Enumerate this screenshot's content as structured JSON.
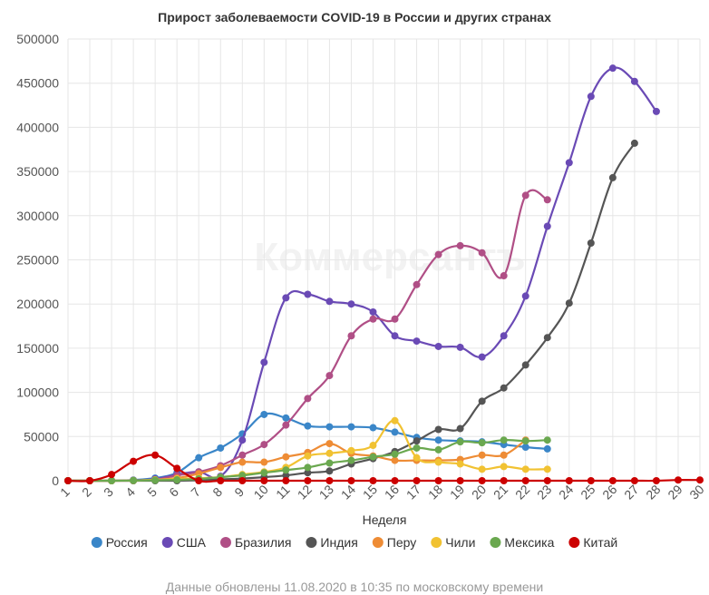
{
  "chart_data": {
    "type": "line",
    "title": "Прирост заболеваемости COVID-19 в России и других странах",
    "xlabel": "Неделя",
    "ylabel": "",
    "ylim": [
      0,
      500000
    ],
    "y_ticks": [
      0,
      50000,
      100000,
      150000,
      200000,
      250000,
      300000,
      350000,
      400000,
      450000,
      500000
    ],
    "categories": [
      "1",
      "2",
      "3",
      "4",
      "5",
      "6",
      "7",
      "8",
      "9",
      "10",
      "11",
      "12",
      "13",
      "14",
      "15",
      "16",
      "17",
      "18",
      "19",
      "20",
      "21",
      "22",
      "23",
      "24",
      "25",
      "26",
      "27",
      "28",
      "29",
      "30"
    ],
    "grid": true,
    "legend_position": "bottom",
    "series": [
      {
        "name": "Россия",
        "color": "#3a86c8",
        "values": [
          0,
          0,
          0,
          800,
          3000,
          9000,
          26000,
          37000,
          53000,
          75000,
          71000,
          62000,
          61000,
          61000,
          60000,
          55000,
          49000,
          46000,
          45000,
          44000,
          41000,
          38000,
          36000,
          null,
          null,
          null,
          null,
          null,
          null,
          null
        ]
      },
      {
        "name": "США",
        "color": "#6a4ab5",
        "values": [
          0,
          0,
          0,
          500,
          2000,
          7000,
          10000,
          5000,
          46000,
          134000,
          207000,
          211000,
          203000,
          200000,
          191000,
          164000,
          158000,
          152000,
          151000,
          140000,
          164000,
          209000,
          288000,
          360000,
          435000,
          467000,
          452000,
          418000,
          null,
          null
        ]
      },
      {
        "name": "Бразилия",
        "color": "#b04f86",
        "values": [
          0,
          0,
          0,
          0,
          1000,
          6000,
          10000,
          17000,
          29000,
          41000,
          63000,
          93000,
          119000,
          164000,
          183000,
          183000,
          222000,
          256000,
          266000,
          258000,
          232000,
          323000,
          318000,
          null,
          null,
          null,
          null,
          null,
          null,
          null
        ]
      },
      {
        "name": "Индия",
        "color": "#555555",
        "values": [
          0,
          0,
          0,
          0,
          0,
          0,
          500,
          1500,
          2500,
          4000,
          6000,
          9000,
          11000,
          19000,
          25000,
          33000,
          45000,
          58000,
          59000,
          90000,
          105000,
          131000,
          162000,
          201000,
          269000,
          343000,
          382000,
          null,
          null,
          null
        ]
      },
      {
        "name": "Перу",
        "color": "#ee8c35",
        "values": [
          0,
          0,
          0,
          300,
          1000,
          3000,
          8000,
          15000,
          21000,
          21000,
          27000,
          32000,
          42000,
          31000,
          28000,
          23000,
          23000,
          23000,
          24000,
          29000,
          29000,
          46000,
          null,
          null,
          null,
          null,
          null,
          null,
          null,
          null
        ]
      },
      {
        "name": "Чили",
        "color": "#f1c232",
        "values": [
          0,
          0,
          0,
          200,
          1000,
          2000,
          3000,
          4000,
          7000,
          10000,
          15000,
          28000,
          31000,
          34000,
          40000,
          68000,
          26000,
          21000,
          19000,
          13000,
          16000,
          13000,
          13000,
          null,
          null,
          null,
          null,
          null,
          null,
          null
        ]
      },
      {
        "name": "Мексика",
        "color": "#6aa84f",
        "values": [
          0,
          0,
          0,
          200,
          500,
          1000,
          2000,
          4000,
          6000,
          9000,
          12000,
          15000,
          20000,
          23000,
          27000,
          30000,
          37000,
          35000,
          44000,
          43000,
          46000,
          45000,
          46000,
          null,
          null,
          null,
          null,
          null,
          null,
          null
        ]
      },
      {
        "name": "Китай",
        "color": "#cc0000",
        "values": [
          0,
          0,
          7000,
          22000,
          29000,
          14000,
          0,
          0,
          0,
          0,
          0,
          0,
          0,
          0,
          0,
          0,
          0,
          0,
          0,
          0,
          0,
          0,
          0,
          0,
          0,
          0,
          0,
          0,
          800,
          800
        ]
      }
    ]
  },
  "watermark_text": "Коммерсантъ",
  "footer_text": "Данные обновлены 11.08.2020 в 10:35 по московскому времени"
}
